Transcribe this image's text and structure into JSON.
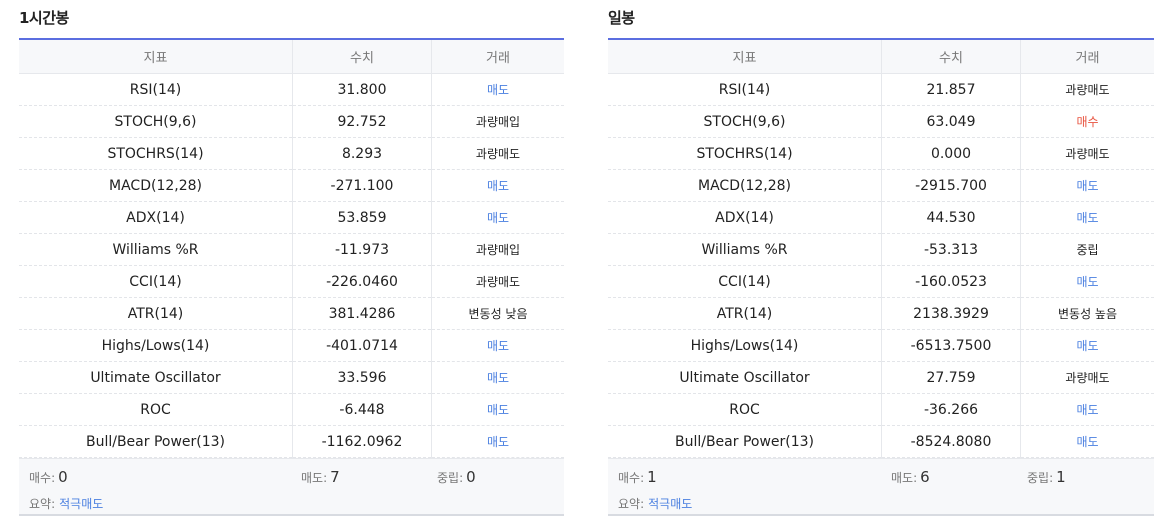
{
  "columns": {
    "indicator": "지표",
    "value": "수치",
    "action": "거래"
  },
  "panels": [
    {
      "title": "1시간봉",
      "rows": [
        {
          "name": "RSI(14)",
          "value": "31.800",
          "action": "매도",
          "tone": "sell"
        },
        {
          "name": "STOCH(9,6)",
          "value": "92.752",
          "action": "과량매입",
          "tone": "neutral"
        },
        {
          "name": "STOCHRS(14)",
          "value": "8.293",
          "action": "과량매도",
          "tone": "neutral"
        },
        {
          "name": "MACD(12,28)",
          "value": "-271.100",
          "action": "매도",
          "tone": "sell"
        },
        {
          "name": "ADX(14)",
          "value": "53.859",
          "action": "매도",
          "tone": "sell"
        },
        {
          "name": "Williams %R",
          "value": "-11.973",
          "action": "과량매입",
          "tone": "neutral"
        },
        {
          "name": "CCI(14)",
          "value": "-226.0460",
          "action": "과량매도",
          "tone": "neutral"
        },
        {
          "name": "ATR(14)",
          "value": "381.4286",
          "action": "변동성 낮음",
          "tone": "neutral"
        },
        {
          "name": "Highs/Lows(14)",
          "value": "-401.0714",
          "action": "매도",
          "tone": "sell"
        },
        {
          "name": "Ultimate Oscillator",
          "value": "33.596",
          "action": "매도",
          "tone": "sell"
        },
        {
          "name": "ROC",
          "value": "-6.448",
          "action": "매도",
          "tone": "sell"
        },
        {
          "name": "Bull/Bear Power(13)",
          "value": "-1162.0962",
          "action": "매도",
          "tone": "sell"
        }
      ],
      "summary": {
        "buy_label": "매수:",
        "buy_count": "0",
        "sell_label": "매도:",
        "sell_count": "7",
        "neutral_label": "중립:",
        "neutral_count": "0",
        "verdict_label": "요약:",
        "verdict": "적극매도"
      }
    },
    {
      "title": "일봉",
      "rows": [
        {
          "name": "RSI(14)",
          "value": "21.857",
          "action": "과량매도",
          "tone": "neutral"
        },
        {
          "name": "STOCH(9,6)",
          "value": "63.049",
          "action": "매수",
          "tone": "buy"
        },
        {
          "name": "STOCHRS(14)",
          "value": "0.000",
          "action": "과량매도",
          "tone": "neutral"
        },
        {
          "name": "MACD(12,28)",
          "value": "-2915.700",
          "action": "매도",
          "tone": "sell"
        },
        {
          "name": "ADX(14)",
          "value": "44.530",
          "action": "매도",
          "tone": "sell"
        },
        {
          "name": "Williams %R",
          "value": "-53.313",
          "action": "중립",
          "tone": "neutral"
        },
        {
          "name": "CCI(14)",
          "value": "-160.0523",
          "action": "매도",
          "tone": "sell"
        },
        {
          "name": "ATR(14)",
          "value": "2138.3929",
          "action": "변동성 높음",
          "tone": "neutral"
        },
        {
          "name": "Highs/Lows(14)",
          "value": "-6513.7500",
          "action": "매도",
          "tone": "sell"
        },
        {
          "name": "Ultimate Oscillator",
          "value": "27.759",
          "action": "과량매도",
          "tone": "neutral"
        },
        {
          "name": "ROC",
          "value": "-36.266",
          "action": "매도",
          "tone": "sell"
        },
        {
          "name": "Bull/Bear Power(13)",
          "value": "-8524.8080",
          "action": "매도",
          "tone": "sell"
        }
      ],
      "summary": {
        "buy_label": "매수:",
        "buy_count": "1",
        "sell_label": "매도:",
        "sell_count": "6",
        "neutral_label": "중립:",
        "neutral_count": "1",
        "verdict_label": "요약:",
        "verdict": "적극매도"
      }
    }
  ],
  "colors": {
    "accent": "#5b6ee0",
    "sell": "#4a7fe0",
    "buy": "#e8533f",
    "neutral": "#222222"
  }
}
